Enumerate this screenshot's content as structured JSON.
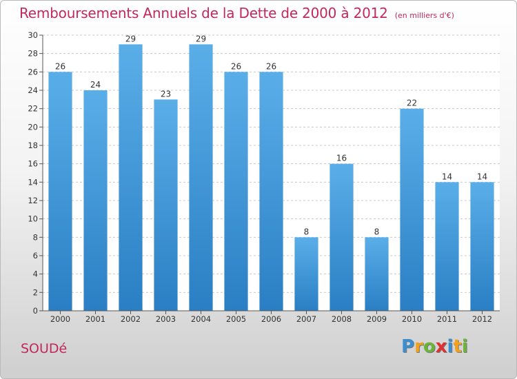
{
  "title": "Remboursements Annuels de la Dette de 2000 à 2012",
  "subtitle": "(en milliers d'€)",
  "commune": "SOUDé",
  "brand": {
    "letters": [
      "P",
      "r",
      "o",
      "x",
      "i",
      "t",
      "i"
    ],
    "colors": [
      "#3a8fd3",
      "#f2a01e",
      "#6bb43a",
      "#e0312f",
      "#3a8fd3",
      "#f2a01e",
      "#6bb43a"
    ]
  },
  "colors": {
    "bar_light": "#5aaee8",
    "bar_dark": "#2a7fc4",
    "title": "#c2275d",
    "grid": "#c8c8c8"
  },
  "chart_data": {
    "type": "bar",
    "categories": [
      "2000",
      "2001",
      "2002",
      "2003",
      "2004",
      "2005",
      "2006",
      "2007",
      "2008",
      "2009",
      "2010",
      "2011",
      "2012"
    ],
    "values": [
      26,
      24,
      29,
      23,
      29,
      26,
      26,
      8,
      16,
      8,
      22,
      14,
      14
    ],
    "ylim": [
      0,
      30
    ],
    "yticks": [
      0,
      2,
      4,
      6,
      8,
      10,
      12,
      14,
      16,
      18,
      20,
      22,
      24,
      26,
      28,
      30
    ],
    "xlabel": "",
    "ylabel": "",
    "grid": true,
    "data_labels": true
  }
}
